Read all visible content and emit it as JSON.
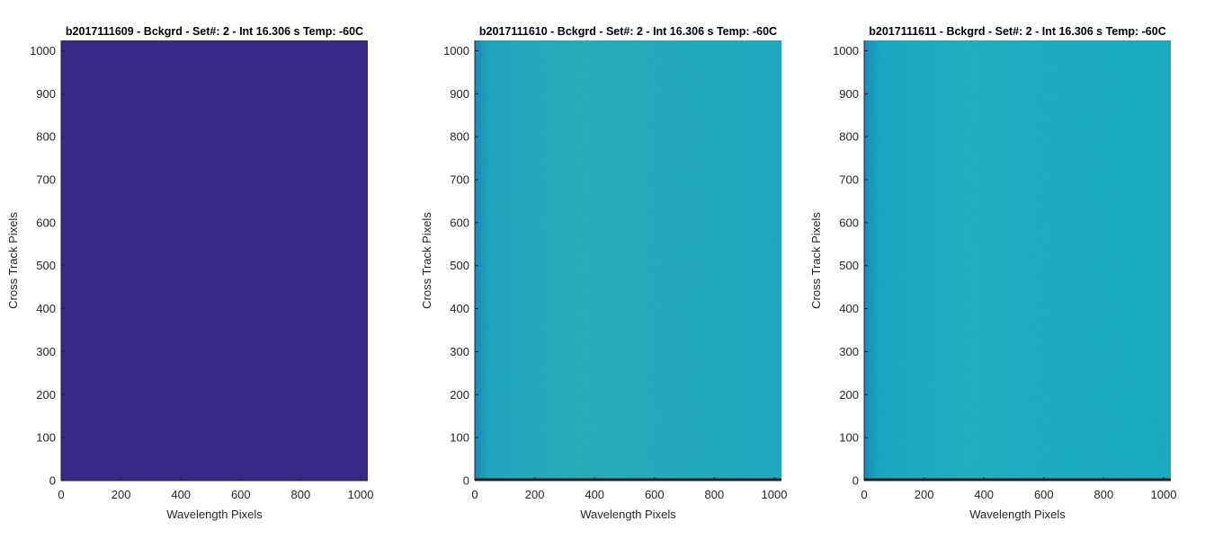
{
  "colors": {
    "axis": "#262626",
    "baseline": "#1a1a1a",
    "title": "#000000",
    "panel_0_fill": "#362985",
    "panel_1_fill": "#1ea2b6",
    "panel_2_fill": "#18a4bd",
    "noise_light": "#4fbd8e",
    "noise_dark": "#137fba",
    "noise_darker": "#1f59a8"
  },
  "chart_data": [
    {
      "type": "heatmap",
      "title": "b2017111609 - Bckgrd - Set#: 2 - Int 16.306 s Temp: -60C",
      "xlabel": "Wavelength Pixels",
      "ylabel": "Cross Track Pixels",
      "xlim": [
        0,
        1024
      ],
      "ylim": [
        0,
        1024
      ],
      "x_ticks": [
        "0",
        "200",
        "400",
        "600",
        "800",
        "1000"
      ],
      "y_ticks": [
        "0",
        "100",
        "200",
        "300",
        "400",
        "500",
        "600",
        "700",
        "800",
        "900",
        "1000"
      ],
      "appearance": "uniform",
      "colormap": "parula"
    },
    {
      "type": "heatmap",
      "title": "b2017111610 - Bckgrd - Set#: 2 - Int 16.306 s Temp: -60C",
      "xlabel": "Wavelength Pixels",
      "ylabel": "Cross Track Pixels",
      "xlim": [
        0,
        1024
      ],
      "ylim": [
        0,
        1024
      ],
      "x_ticks": [
        "0",
        "200",
        "400",
        "600",
        "800",
        "1000"
      ],
      "y_ticks": [
        "0",
        "100",
        "200",
        "300",
        "400",
        "500",
        "600",
        "700",
        "800",
        "900",
        "1000"
      ],
      "appearance": "noisy",
      "colormap": "parula"
    },
    {
      "type": "heatmap",
      "title": "b2017111611 - Bckgrd - Set#: 2 - Int 16.306 s Temp: -60C",
      "xlabel": "Wavelength Pixels",
      "ylabel": "Cross Track Pixels",
      "xlim": [
        0,
        1024
      ],
      "ylim": [
        0,
        1024
      ],
      "x_ticks": [
        "0",
        "200",
        "400",
        "600",
        "800",
        "1000"
      ],
      "y_ticks": [
        "0",
        "100",
        "200",
        "300",
        "400",
        "500",
        "600",
        "700",
        "800",
        "900",
        "1000"
      ],
      "appearance": "noisy",
      "colormap": "parula"
    }
  ]
}
